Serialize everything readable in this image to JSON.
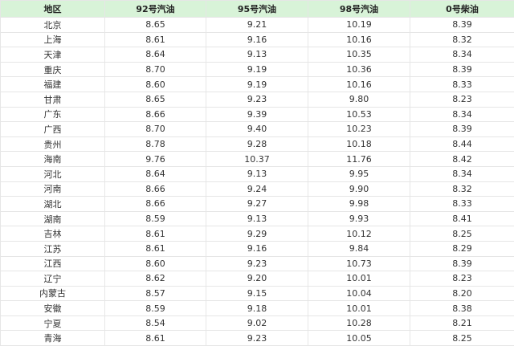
{
  "headers": [
    "地区",
    "92号汽油",
    "95号汽油",
    "98号汽油",
    "0号柴油"
  ],
  "rows": [
    [
      "北京",
      "8.65",
      "9.21",
      "10.19",
      "8.39"
    ],
    [
      "上海",
      "8.61",
      "9.16",
      "10.16",
      "8.32"
    ],
    [
      "天津",
      "8.64",
      "9.13",
      "10.35",
      "8.34"
    ],
    [
      "重庆",
      "8.70",
      "9.19",
      "10.36",
      "8.39"
    ],
    [
      "福建",
      "8.60",
      "9.19",
      "10.16",
      "8.33"
    ],
    [
      "甘肃",
      "8.65",
      "9.23",
      "9.80",
      "8.23"
    ],
    [
      "广东",
      "8.66",
      "9.39",
      "10.53",
      "8.34"
    ],
    [
      "广西",
      "8.70",
      "9.40",
      "10.23",
      "8.39"
    ],
    [
      "贵州",
      "8.78",
      "9.28",
      "10.18",
      "8.44"
    ],
    [
      "海南",
      "9.76",
      "10.37",
      "11.76",
      "8.42"
    ],
    [
      "河北",
      "8.64",
      "9.13",
      "9.95",
      "8.34"
    ],
    [
      "河南",
      "8.66",
      "9.24",
      "9.90",
      "8.32"
    ],
    [
      "湖北",
      "8.66",
      "9.27",
      "9.98",
      "8.33"
    ],
    [
      "湖南",
      "8.59",
      "9.13",
      "9.93",
      "8.41"
    ],
    [
      "吉林",
      "8.61",
      "9.29",
      "10.12",
      "8.25"
    ],
    [
      "江苏",
      "8.61",
      "9.16",
      "9.84",
      "8.29"
    ],
    [
      "江西",
      "8.60",
      "9.23",
      "10.73",
      "8.39"
    ],
    [
      "辽宁",
      "8.62",
      "9.20",
      "10.01",
      "8.23"
    ],
    [
      "内蒙古",
      "8.57",
      "9.15",
      "10.04",
      "8.20"
    ],
    [
      "安徽",
      "8.59",
      "9.18",
      "10.01",
      "8.38"
    ],
    [
      "宁夏",
      "8.54",
      "9.02",
      "10.28",
      "8.21"
    ],
    [
      "青海",
      "8.61",
      "9.23",
      "10.05",
      "8.25"
    ]
  ],
  "colors": {
    "header_bg": "#d8f3d8",
    "border": "#e6e6e6"
  }
}
